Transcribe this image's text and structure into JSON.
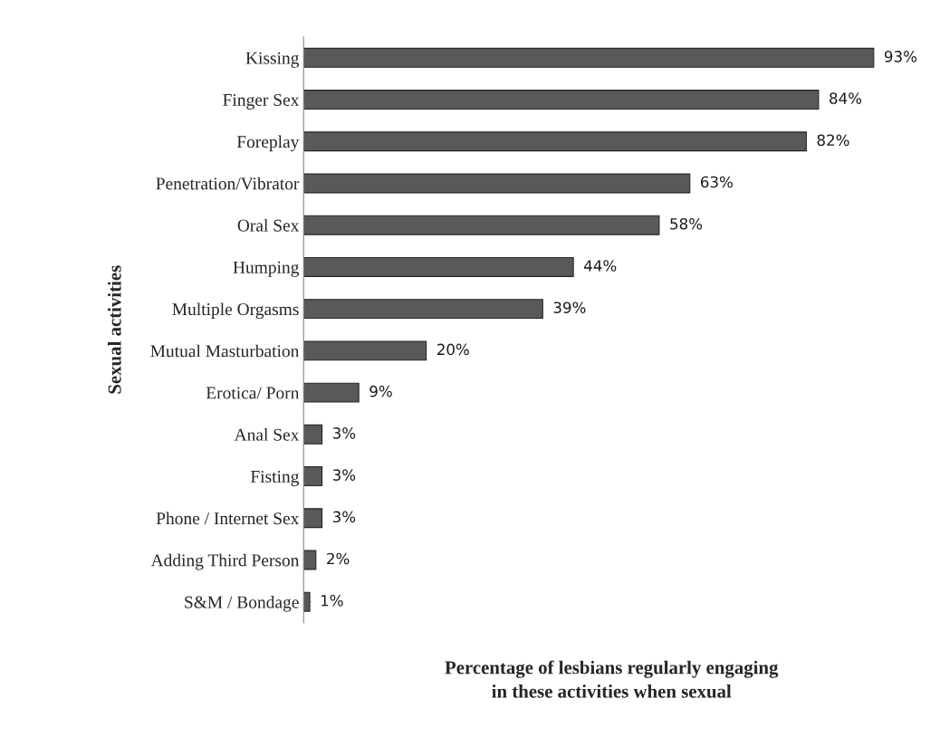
{
  "chart_data": {
    "type": "bar",
    "orientation": "horizontal",
    "categories": [
      "Kissing",
      "Finger Sex",
      "Foreplay",
      "Penetration/Vibrator",
      "Oral Sex",
      "Humping",
      "Multiple Orgasms",
      "Mutual Masturbation",
      "Erotica/ Porn",
      "Anal Sex",
      "Fisting",
      "Phone / Internet Sex",
      "Adding Third Person",
      "S&M / Bondage"
    ],
    "values": [
      93,
      84,
      82,
      63,
      58,
      44,
      39,
      20,
      9,
      3,
      3,
      3,
      2,
      1
    ],
    "value_labels": [
      "93%",
      "84%",
      "82%",
      "63%",
      "58%",
      "44%",
      "39%",
      "20%",
      "9%",
      "3%",
      "3%",
      "3%",
      "2%",
      "1%"
    ],
    "color": "#595959",
    "xlabel": "Percentage of lesbians regularly engaging\nin these activities when sexual",
    "ylabel": "Sexual activities",
    "tick_labels": "y",
    "grid": false,
    "legend": false
  }
}
